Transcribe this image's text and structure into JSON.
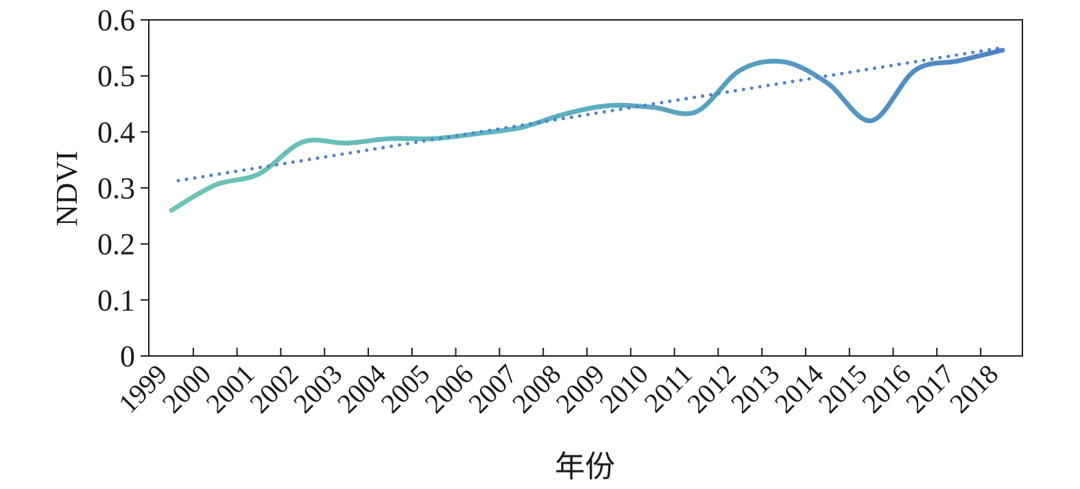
{
  "chart_data": {
    "type": "line",
    "title": "",
    "xlabel": "年份",
    "ylabel": "NDVI",
    "categories": [
      "1999",
      "2000",
      "2001",
      "2002",
      "2003",
      "2004",
      "2005",
      "2006",
      "2007",
      "2008",
      "2009",
      "2010",
      "2011",
      "2012",
      "2013",
      "2014",
      "2015",
      "2016",
      "2017",
      "2018"
    ],
    "series": [
      {
        "values": [
          0.26,
          0.305,
          0.325,
          0.382,
          0.38,
          0.388,
          0.388,
          0.397,
          0.408,
          0.432,
          0.447,
          0.444,
          0.436,
          0.51,
          0.525,
          0.487,
          0.42,
          0.51,
          0.527,
          0.546
        ],
        "style": "smooth-gradient",
        "color_start": "#6cc5b6",
        "color_end": "#4f83c4"
      },
      {
        "values": [
          0.313,
          0.3255,
          0.338,
          0.3505,
          0.363,
          0.3755,
          0.388,
          0.4005,
          0.413,
          0.4255,
          0.438,
          0.4505,
          0.463,
          0.4755,
          0.488,
          0.5005,
          0.513,
          0.5255,
          0.538,
          0.5505
        ],
        "style": "dotted-trend",
        "color": "#4f83c4"
      }
    ],
    "ylim": [
      0,
      0.6
    ],
    "yticks": [
      "0",
      "0.1",
      "0.2",
      "0.3",
      "0.4",
      "0.5",
      "0.6"
    ],
    "ytick_values": [
      0,
      0.1,
      0.2,
      0.3,
      0.4,
      0.5,
      0.6
    ],
    "grid": false,
    "legend": "none"
  }
}
